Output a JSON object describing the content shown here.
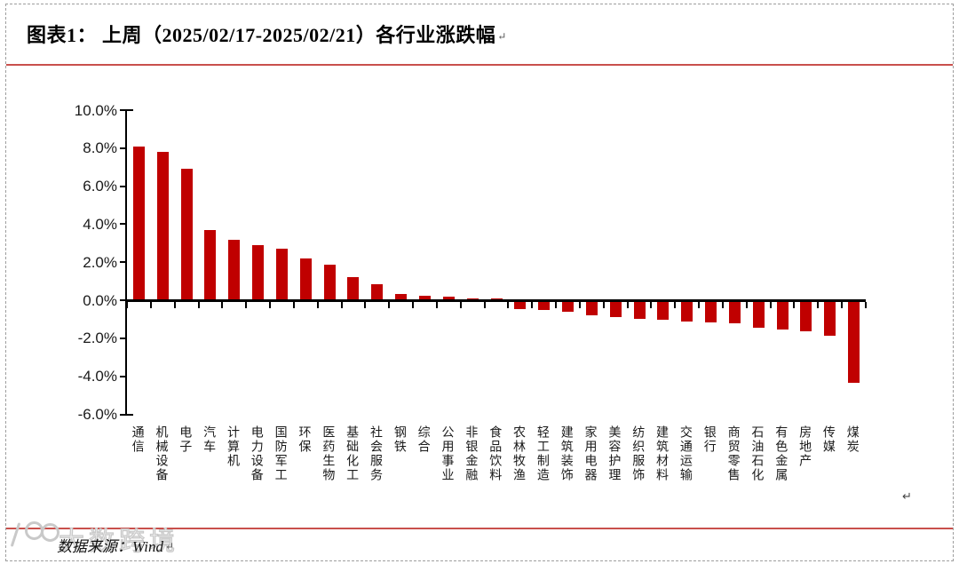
{
  "header": {
    "title": "图表1： 上周（2025/02/17-2025/02/21）各行业涨跌幅",
    "return_mark": "↵"
  },
  "marks": {
    "after_chart": "↵"
  },
  "footer": {
    "source": "数据来源：Wind",
    "return_mark": "↵",
    "watermark": "大数跨境"
  },
  "colors": {
    "bar": "#C00000",
    "rule": "#C9504C",
    "axis": "#000000",
    "border_dash": "#9E9E9E",
    "watermark": "#C9C9C9"
  },
  "chart_data": {
    "type": "bar",
    "title": "上周（2025/02/17-2025/02/21）各行业涨跌幅",
    "xlabel": "",
    "ylabel": "",
    "ylim": [
      -6,
      10
    ],
    "ytick_step": 2,
    "ytick_labels": [
      "10.0%",
      "8.0%",
      "6.0%",
      "4.0%",
      "2.0%",
      "0.0%",
      "-2.0%",
      "-4.0%",
      "-6.0%"
    ],
    "grid": false,
    "legend": false,
    "categories": [
      "通信",
      "机械设备",
      "电子",
      "汽车",
      "计算机",
      "电力设备",
      "国防军工",
      "环保",
      "医药生物",
      "基础化工",
      "社会服务",
      "钢铁",
      "综合",
      "公用事业",
      "非银金融",
      "食品饮料",
      "农林牧渔",
      "轻工制造",
      "建筑装饰",
      "家用电器",
      "美容护理",
      "纺织服饰",
      "建筑材料",
      "交通运输",
      "银行",
      "商贸零售",
      "石油石化",
      "有色金属",
      "房地产",
      "传媒",
      "煤炭"
    ],
    "values": [
      8.1,
      7.8,
      6.9,
      3.7,
      3.2,
      2.9,
      2.7,
      2.2,
      1.85,
      1.2,
      0.85,
      0.35,
      0.25,
      0.2,
      0.1,
      0.1,
      -0.4,
      -0.45,
      -0.55,
      -0.75,
      -0.85,
      -0.95,
      -1.0,
      -1.05,
      -1.1,
      -1.15,
      -1.4,
      -1.5,
      -1.6,
      -1.8,
      -4.3
    ]
  }
}
